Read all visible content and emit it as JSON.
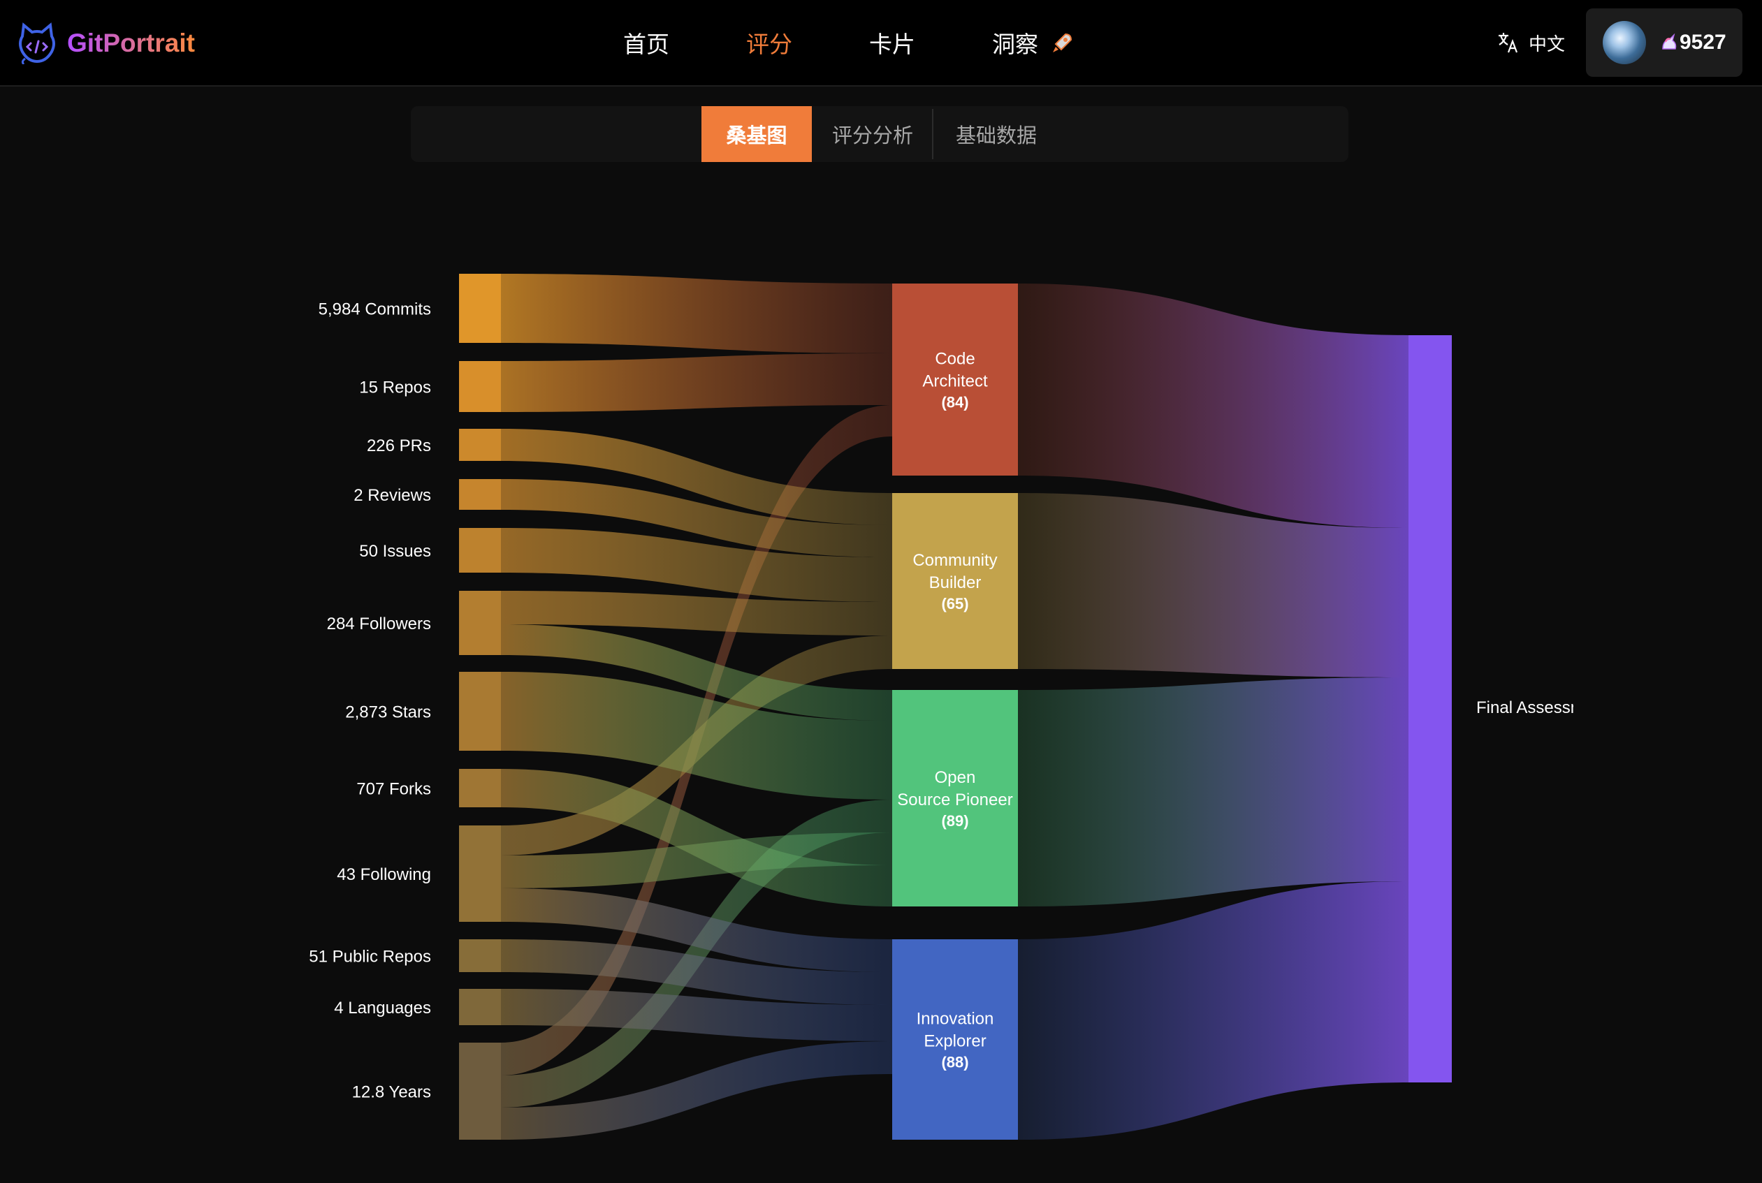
{
  "app": {
    "brand": "GitPortrait",
    "nav": [
      {
        "label": "首页",
        "active": false
      },
      {
        "label": "评分",
        "active": true
      },
      {
        "label": "卡片",
        "active": false
      },
      {
        "label": "洞察",
        "active": false
      }
    ],
    "language": "中文",
    "user": "9527"
  },
  "tabs": [
    {
      "label": "桑基图",
      "active": true
    },
    {
      "label": "评分分析",
      "active": false
    },
    {
      "label": "基础数据",
      "active": false
    }
  ],
  "chart_data": {
    "type": "sankey",
    "sources": [
      {
        "label": "5,984 Commits",
        "color": "#e0962a"
      },
      {
        "label": "15 Repos",
        "color": "#d88f2b"
      },
      {
        "label": "226 PRs",
        "color": "#cc892c"
      },
      {
        "label": "2 Reviews",
        "color": "#c6852d"
      },
      {
        "label": "50 Issues",
        "color": "#bd822e"
      },
      {
        "label": "284 Followers",
        "color": "#b37e30"
      },
      {
        "label": "2,873 Stars",
        "color": "#a97a32"
      },
      {
        "label": "707 Forks",
        "color": "#9f7634"
      },
      {
        "label": "43 Following",
        "color": "#927237"
      },
      {
        "label": "51 Public Repos",
        "color": "#876d39"
      },
      {
        "label": "4 Languages",
        "color": "#7f683a"
      },
      {
        "label": "12.8 Years",
        "color": "#6e5c3e"
      }
    ],
    "categories": [
      {
        "name": "Code Architect",
        "score": "(84)",
        "color": "#b94f36"
      },
      {
        "name": "Community Builder",
        "score": "(65)",
        "color": "#c3a34c"
      },
      {
        "name": "Open Source Pioneer",
        "score": "(89)",
        "color": "#52c47c"
      },
      {
        "name": "Innovation Explorer",
        "score": "(88)",
        "color": "#4266c2"
      }
    ],
    "target": {
      "label": "Final Assessment",
      "color": "#8455ef"
    }
  }
}
